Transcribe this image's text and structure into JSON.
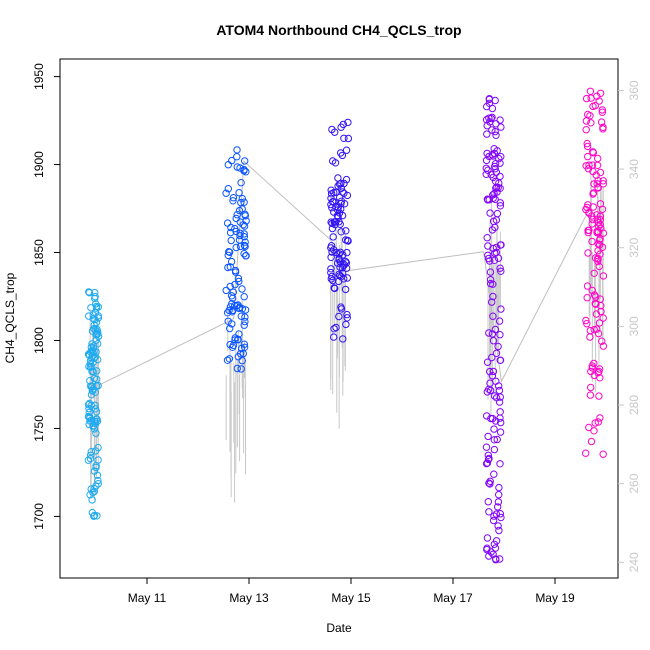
{
  "chart_data": {
    "type": "scatter",
    "title": "ATOM4 Northbound CH4_QCLS_trop",
    "xlabel": "Date",
    "ylabel": "CH4_QCLS_trop",
    "x_ticks": [
      "May 11",
      "May 13",
      "May 15",
      "May 17",
      "May 19"
    ],
    "x_range_days": [
      "May 9",
      "May 20"
    ],
    "ylim": [
      1665,
      1960
    ],
    "y_ticks": [
      1700,
      1750,
      1800,
      1850,
      1900,
      1950
    ],
    "y2_label": "",
    "y2lim": [
      236,
      368
    ],
    "y2_ticks": [
      240,
      260,
      280,
      300,
      320,
      340,
      360
    ],
    "y2_color": "#c8c8c8",
    "grid": false,
    "legend": "none",
    "series": [
      {
        "date": "May 9-10",
        "color": "#1eaaf0",
        "x_range": [
          9.85,
          10.05
        ],
        "clusters": [
          {
            "y": [
              1785,
              1828
            ],
            "n": 40
          },
          {
            "y": [
              1750,
              1800
            ],
            "n": 45
          },
          {
            "y": [
              1712,
              1765
            ],
            "n": 25
          },
          {
            "y": [
              1700,
              1720
            ],
            "n": 6
          }
        ]
      },
      {
        "date": "May 12-13",
        "color": "#0a55ff",
        "x_range": [
          12.55,
          12.95
        ],
        "clusters": [
          {
            "y": [
              1783,
              1825
            ],
            "n": 35
          },
          {
            "y": [
              1810,
              1870
            ],
            "n": 40
          },
          {
            "y": [
              1860,
              1910
            ],
            "n": 30
          }
        ]
      },
      {
        "date": "May 14-15",
        "color": "#3214f5",
        "x_range": [
          14.6,
          14.95
        ],
        "clusters": [
          {
            "y": [
              1835,
              1890
            ],
            "n": 60
          },
          {
            "y": [
              1800,
              1845
            ],
            "n": 20
          },
          {
            "y": [
              1875,
              1926
            ],
            "n": 25
          }
        ]
      },
      {
        "date": "May 17-18",
        "color": "#8205fa",
        "x_range": [
          17.65,
          17.95
        ],
        "clusters": [
          {
            "y": [
              1845,
              1940
            ],
            "n": 70
          },
          {
            "y": [
              1760,
              1860
            ],
            "n": 35
          },
          {
            "y": [
              1675,
              1780
            ],
            "n": 55
          }
        ]
      },
      {
        "date": "May 19-20",
        "color": "#ff05c8",
        "x_range": [
          19.6,
          19.95
        ],
        "clusters": [
          {
            "y": [
              1860,
              1942
            ],
            "n": 60
          },
          {
            "y": [
              1780,
              1880
            ],
            "n": 50
          },
          {
            "y": [
              1735,
              1790
            ],
            "n": 15
          }
        ]
      }
    ],
    "altitude_line": {
      "axis": "right",
      "color": "#bebebe",
      "points": [
        [
          9.9,
          285
        ],
        [
          10.05,
          285
        ],
        [
          12.55,
          301
        ],
        [
          12.7,
          302
        ],
        [
          12.9,
          342
        ],
        [
          14.6,
          322
        ],
        [
          14.85,
          314
        ],
        [
          17.6,
          319
        ],
        [
          17.95,
          286
        ],
        [
          19.6,
          328
        ]
      ]
    }
  }
}
